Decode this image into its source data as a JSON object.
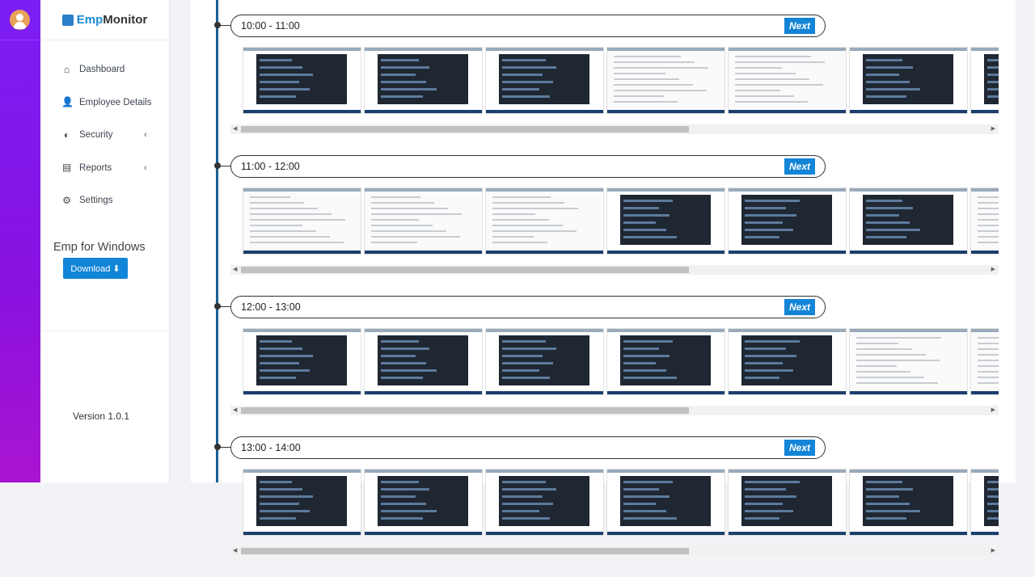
{
  "brand": {
    "part1": "Emp",
    "part2": "Monitor"
  },
  "sidebar": {
    "items": [
      {
        "label": "Dashboard",
        "icon": "home-icon",
        "chevron": false
      },
      {
        "label": "Employee Details",
        "icon": "user-icon",
        "chevron": false
      },
      {
        "label": "Security",
        "icon": "shield-icon",
        "chevron": true
      },
      {
        "label": "Reports",
        "icon": "document-icon",
        "chevron": true
      },
      {
        "label": "Settings",
        "icon": "gear-icon",
        "chevron": true
      }
    ],
    "windows_heading": "Emp for Windows",
    "download_label": "Download",
    "version": "Version 1.0.1"
  },
  "colors": {
    "accent": "#1384d6",
    "timeline": "#1a5f93",
    "strip_top": "#7a1ef5",
    "strip_bottom": "#a914d0"
  },
  "timeline": {
    "sections": [
      {
        "range": "10:00 - 11:00",
        "next_label": "Next",
        "thumbs": [
          "dark",
          "dark",
          "dark",
          "light",
          "light",
          "dark",
          "dark"
        ],
        "scroll_fraction": 0.6
      },
      {
        "range": "11:00 - 12:00",
        "next_label": "Next",
        "thumbs": [
          "light",
          "light",
          "light",
          "dark",
          "dark",
          "dark",
          "light"
        ],
        "scroll_fraction": 0.6
      },
      {
        "range": "12:00 - 13:00",
        "next_label": "Next",
        "thumbs": [
          "dark",
          "dark",
          "dark",
          "dark",
          "dark",
          "light",
          "light"
        ],
        "scroll_fraction": 0.6
      },
      {
        "range": "13:00 - 14:00",
        "next_label": "Next",
        "thumbs": [
          "dark",
          "dark",
          "dark",
          "dark",
          "dark",
          "dark",
          "dark"
        ],
        "scroll_fraction": 0.6
      }
    ]
  }
}
